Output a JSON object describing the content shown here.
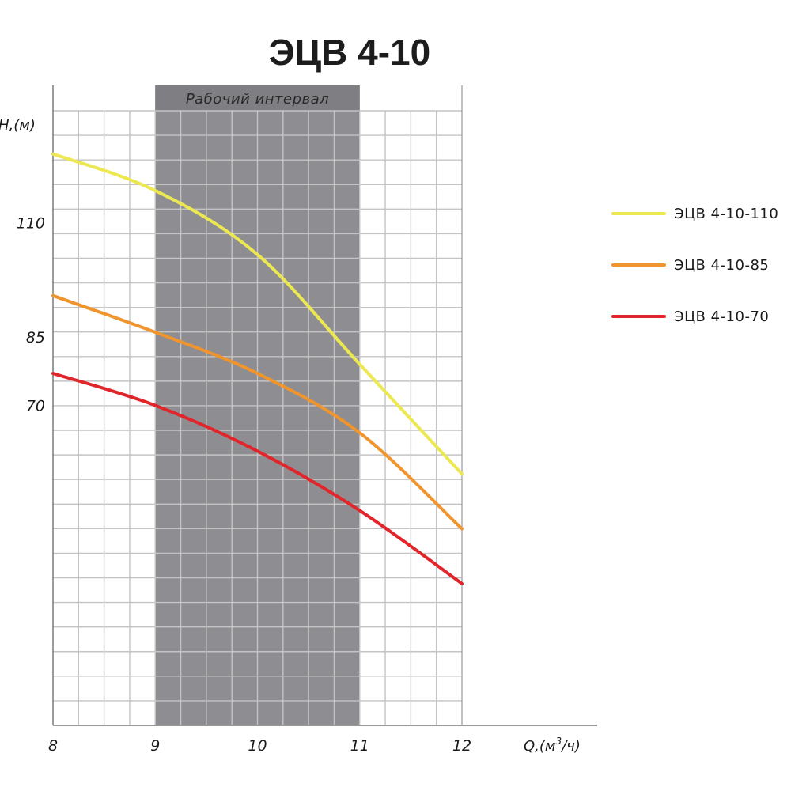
{
  "chart_data": {
    "type": "line",
    "title": "ЭЦВ 4-10",
    "xlabel": "Q,(м",
    "xlabel_sup": "3",
    "xlabel_tail": "/ч)",
    "ylabel": "H,(м)",
    "xlim": [
      8,
      12
    ],
    "ylim": [
      0,
      140
    ],
    "x_ticks": [
      8,
      9,
      10,
      11,
      12
    ],
    "x_tick_labels": [
      "8",
      "9",
      "10",
      "11",
      "12"
    ],
    "y_ticks": [
      70,
      85,
      110
    ],
    "y_tick_labels": [
      "70",
      "85",
      "110"
    ],
    "grid": true,
    "legend_position": "right",
    "working_range": {
      "label": "Рабочий интервал",
      "from": 9,
      "to": 11
    },
    "series": [
      {
        "name": "ЭЦВ 4-10-110",
        "color": "#ece851",
        "x": [
          8,
          9,
          10,
          11,
          12
        ],
        "y": [
          125,
          117,
          103,
          79,
          55
        ]
      },
      {
        "name": "ЭЦВ 4-10-85",
        "color": "#f0952e",
        "x": [
          8,
          9,
          10,
          11,
          12
        ],
        "y": [
          94,
          86,
          77,
          64,
          43
        ]
      },
      {
        "name": "ЭЦВ 4-10-70",
        "color": "#e1262b",
        "x": [
          8,
          9,
          10,
          11,
          12
        ],
        "y": [
          77,
          70,
          60,
          47,
          31
        ]
      }
    ]
  }
}
